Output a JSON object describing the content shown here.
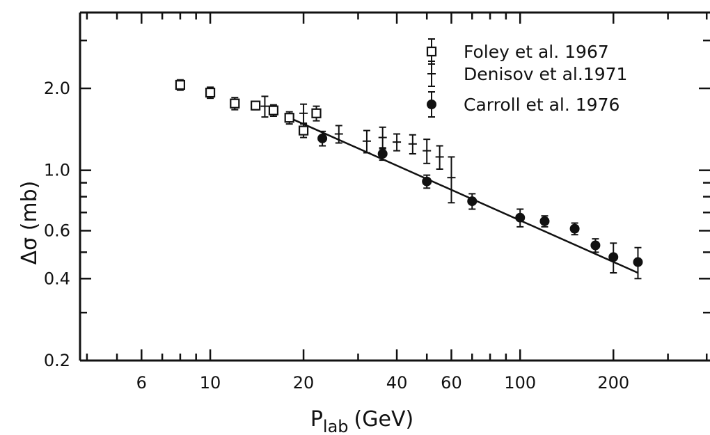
{
  "chart_data": {
    "type": "scatter",
    "title": "",
    "xlabel_main": "P",
    "xlabel_sub": "lab",
    "xlabel_unit": "(GeV)",
    "ylabel": "Δσ (mb)",
    "x_scale": "log",
    "y_scale": "log",
    "xlim": [
      3.8,
      410
    ],
    "ylim": [
      0.2,
      3.8
    ],
    "grid": false,
    "legend_position": "top-right",
    "x_ticks": [
      {
        "value": 6,
        "label": "6"
      },
      {
        "value": 10,
        "label": "10"
      },
      {
        "value": 20,
        "label": "20"
      },
      {
        "value": 40,
        "label": "40"
      },
      {
        "value": 60,
        "label": "60"
      },
      {
        "value": 100,
        "label": "100"
      },
      {
        "value": 200,
        "label": "200"
      }
    ],
    "x_minor_ticks": [
      4,
      5,
      7,
      8,
      9,
      30,
      50,
      70,
      80,
      90,
      300,
      400
    ],
    "y_ticks": [
      {
        "value": 0.2,
        "label": "0.2"
      },
      {
        "value": 0.4,
        "label": "0.4"
      },
      {
        "value": 0.6,
        "label": "0.6"
      },
      {
        "value": 1.0,
        "label": "1.0"
      },
      {
        "value": 2.0,
        "label": "2.0"
      }
    ],
    "y_minor_ticks": [
      0.3,
      0.5,
      0.7,
      0.8,
      0.9,
      3.0
    ],
    "series": [
      {
        "name": "Foley et al.  1967",
        "marker": "open-square",
        "points": [
          {
            "x": 8,
            "y": 2.06,
            "err": 0.09
          },
          {
            "x": 10,
            "y": 1.93,
            "err": 0.09
          },
          {
            "x": 12,
            "y": 1.76,
            "err": 0.09
          },
          {
            "x": 14,
            "y": 1.73,
            "err": 0.06
          },
          {
            "x": 16,
            "y": 1.66,
            "err": 0.08
          },
          {
            "x": 18,
            "y": 1.56,
            "err": 0.08
          },
          {
            "x": 20,
            "y": 1.4,
            "err": 0.08
          },
          {
            "x": 22,
            "y": 1.62,
            "err": 0.1
          }
        ]
      },
      {
        "name": "Denisov et al.1971",
        "marker": "cross",
        "points": [
          {
            "x": 15,
            "y": 1.72,
            "err": 0.15
          },
          {
            "x": 20,
            "y": 1.62,
            "err": 0.13
          },
          {
            "x": 26,
            "y": 1.36,
            "err": 0.1
          },
          {
            "x": 32,
            "y": 1.28,
            "err": 0.12
          },
          {
            "x": 36,
            "y": 1.32,
            "err": 0.12
          },
          {
            "x": 40,
            "y": 1.27,
            "err": 0.09
          },
          {
            "x": 45,
            "y": 1.25,
            "err": 0.1
          },
          {
            "x": 50,
            "y": 1.18,
            "err": 0.12
          },
          {
            "x": 55,
            "y": 1.12,
            "err": 0.11
          },
          {
            "x": 60,
            "y": 0.94,
            "err": 0.18
          }
        ]
      },
      {
        "name": "Carroll et al. 1976",
        "marker": "filled-circle",
        "points": [
          {
            "x": 23,
            "y": 1.31,
            "err": 0.08
          },
          {
            "x": 36,
            "y": 1.15,
            "err": 0.06
          },
          {
            "x": 50,
            "y": 0.91,
            "err": 0.05
          },
          {
            "x": 70,
            "y": 0.77,
            "err": 0.05
          },
          {
            "x": 100,
            "y": 0.67,
            "err": 0.05
          },
          {
            "x": 120,
            "y": 0.65,
            "err": 0.03
          },
          {
            "x": 150,
            "y": 0.61,
            "err": 0.03
          },
          {
            "x": 175,
            "y": 0.53,
            "err": 0.03
          },
          {
            "x": 200,
            "y": 0.48,
            "err": 0.06
          },
          {
            "x": 240,
            "y": 0.46,
            "err": 0.06
          }
        ]
      }
    ],
    "fit_line": {
      "x": [
        18,
        240
      ],
      "y": [
        1.56,
        0.42
      ]
    }
  }
}
